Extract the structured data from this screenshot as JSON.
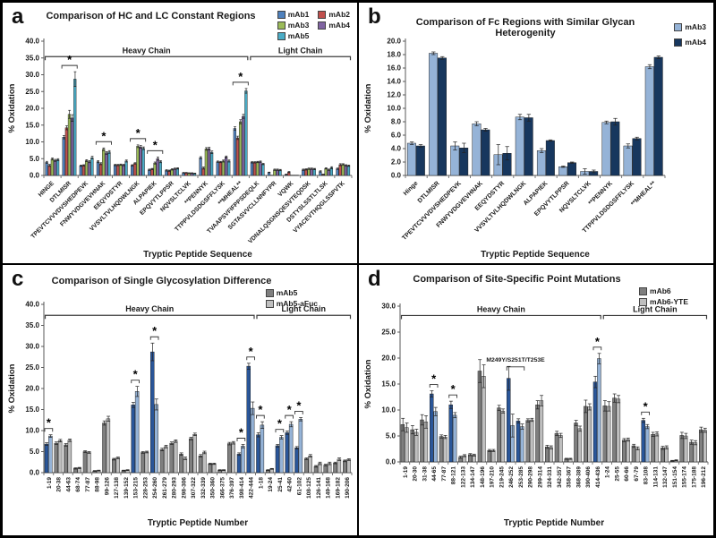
{
  "figure": {
    "background": "#ffffff",
    "border_color": "#000000"
  },
  "chart_data": [
    {
      "panel_label": "a",
      "type": "bar",
      "title": "Comparison of HC and LC Constant Regions",
      "xlabel": "Tryptic Peptide Sequence",
      "ylabel": "% Oxidation",
      "ylim": [
        0,
        40
      ],
      "ytick_step": 5,
      "grid": false,
      "legend_position": "top-right",
      "legend_columns": 2,
      "sig_marker_symbol": "*",
      "categories": [
        "HINGE",
        "DTLMISR",
        "TPEVTCVVVDVSHEDPEVK",
        "FNWYVDGVEVHNAK",
        "EEQYDSTYR",
        "VVSVLTVLHQDWLNGK",
        "ALPAPIEK",
        "EPQVYTLPPSR",
        "NQVSLTCLVK",
        "**PENNYK",
        "TTPPVLDSDGSFFLYSK",
        "**MHEAL**",
        "TVAAPSVFIFPPSDEQLK",
        "SGTASVVCLLNNFYPR",
        "VQWK",
        "VDNALQSGNSQESVTEQDSK",
        "DSTYSLSSTLTLSK",
        "VYACEVTHQGLSSPVTK"
      ],
      "series": [
        {
          "name": "mAb1",
          "color": "#4F81BD",
          "values": [
            3.9,
            11.4,
            2.9,
            4.1,
            3.1,
            3.0,
            1.7,
            1.5,
            0.8,
            5.3,
            4.1,
            14.0,
            3.9,
            0.9,
            0.3,
            1.7,
            1.2,
            2.0
          ],
          "errors": [
            0.3,
            0.5,
            0.2,
            0.3,
            0.2,
            0.2,
            0.2,
            0.2,
            0.1,
            0.3,
            0.2,
            0.5,
            0.2,
            0.1,
            0.1,
            0.2,
            0.2,
            0.2
          ]
        },
        {
          "name": "mAb2",
          "color": "#C0504D",
          "values": [
            3.0,
            14.2,
            3.0,
            3.5,
            3.1,
            3.6,
            1.9,
            1.4,
            0.8,
            2.2,
            4.0,
            11.2,
            3.9,
            0.1,
            1.0,
            1.8,
            0.3,
            3.2
          ],
          "errors": [
            0.3,
            0.6,
            0.2,
            0.3,
            0.2,
            0.2,
            0.2,
            0.2,
            0.1,
            0.3,
            0.2,
            0.5,
            0.2,
            0.1,
            0.2,
            0.2,
            0.1,
            0.3
          ]
        },
        {
          "name": "mAb3",
          "color": "#9BBB59",
          "values": [
            4.9,
            18.2,
            4.4,
            7.8,
            3.2,
            8.7,
            3.7,
            1.8,
            0.7,
            7.9,
            4.3,
            16.0,
            4.0,
            1.7,
            0.1,
            2.0,
            2.1,
            3.3
          ],
          "errors": [
            0.3,
            1.2,
            0.3,
            0.4,
            0.2,
            0.4,
            0.3,
            0.2,
            0.1,
            0.4,
            0.3,
            0.6,
            0.2,
            0.2,
            0.1,
            0.2,
            0.2,
            0.2
          ]
        },
        {
          "name": "mAb4",
          "color": "#8064A2",
          "values": [
            4.5,
            17.1,
            4.1,
            6.7,
            3.1,
            8.5,
            5.0,
            2.0,
            0.7,
            8.0,
            5.5,
            17.6,
            4.1,
            1.7,
            0.1,
            2.0,
            1.7,
            3.0
          ],
          "errors": [
            0.3,
            1.0,
            0.3,
            0.4,
            0.2,
            0.4,
            0.5,
            0.2,
            0.1,
            0.4,
            0.3,
            0.6,
            0.2,
            0.2,
            0.1,
            0.2,
            0.2,
            0.2
          ]
        },
        {
          "name": "mAb5",
          "color": "#4BACC6",
          "values": [
            4.7,
            28.7,
            5.3,
            7.0,
            4.3,
            8.1,
            4.1,
            2.1,
            0.6,
            6.9,
            4.3,
            25.2,
            3.4,
            1.6,
            0.1,
            1.9,
            2.3,
            2.9
          ],
          "errors": [
            0.3,
            2.2,
            0.4,
            0.4,
            0.3,
            0.4,
            0.3,
            0.2,
            0.1,
            0.4,
            0.3,
            0.7,
            0.2,
            0.2,
            0.1,
            0.2,
            0.3,
            0.2
          ]
        }
      ],
      "sig_markers": [
        1,
        3,
        5,
        6,
        11
      ],
      "group_brackets": [
        {
          "label": "Heavy Chain",
          "from": 0,
          "to": 11
        },
        {
          "label": "Light Chain",
          "from": 12,
          "to": 17
        }
      ]
    },
    {
      "panel_label": "b",
      "type": "bar",
      "title": "Comparison of Fc Regions with Similar Glycan Heterogenity",
      "xlabel": "Tryptic Peptide Sequence",
      "ylabel": "% Oxidation",
      "ylim": [
        0,
        20
      ],
      "ytick_step": 2,
      "grid": false,
      "legend_position": "top-right",
      "legend_columns": 1,
      "sig_marker_symbol": "*",
      "categories": [
        "Hinge",
        "DTLMISR",
        "TPEVTCVVVDVSHEDPEVK",
        "FNWYVDGVEVHNAK",
        "EEQYDSTYR",
        "VVSVLTVLHQDWLNGK",
        "ALPAPIEK",
        "EPQVYTLPPSR",
        "NQVSLTCLVK",
        "**PENNYK",
        "TTPPVLDSDGSFFLYSK",
        "**MHEAL**"
      ],
      "series": [
        {
          "name": "mAb3",
          "color": "#95B3D7",
          "values": [
            4.8,
            18.2,
            4.4,
            7.7,
            3.1,
            8.7,
            3.7,
            1.3,
            0.6,
            7.9,
            4.4,
            16.2
          ],
          "errors": [
            0.2,
            0.2,
            0.6,
            0.3,
            1.5,
            0.4,
            0.3,
            0.1,
            0.4,
            0.2,
            0.3,
            0.3
          ]
        },
        {
          "name": "mAb4",
          "color": "#17375E",
          "values": [
            4.4,
            17.5,
            4.1,
            6.8,
            3.3,
            8.6,
            5.2,
            1.9,
            0.6,
            8.0,
            5.5,
            17.6
          ],
          "errors": [
            0.2,
            0.2,
            0.7,
            0.2,
            1.0,
            0.5,
            0.1,
            0.1,
            0.2,
            0.5,
            0.2,
            0.2
          ]
        }
      ],
      "sig_markers": [],
      "group_brackets": []
    },
    {
      "panel_label": "c",
      "type": "bar",
      "title": "Comparison of Single Glycosylation Difference",
      "xlabel": "Tryptic Peptide Number",
      "ylabel": "% Oxidation",
      "ylim": [
        0,
        40
      ],
      "ytick_step": 5,
      "grid": false,
      "legend_position": "top-right",
      "legend_columns": 1,
      "sig_marker_symbol": "*",
      "categories": [
        "1-19",
        "20-38",
        "44-63",
        "68-74",
        "77-87",
        "88-98",
        "99-126",
        "127-138",
        "139-152",
        "153-215",
        "228-253",
        "254-260",
        "261-279",
        "280-293",
        "298-306",
        "307-322",
        "332-339",
        "350-360",
        "366-375",
        "376-397",
        "398-414",
        "422-444",
        "1-18",
        "19-24",
        "25-41",
        "42-60",
        "61-102",
        "108-125",
        "126-141",
        "149-168",
        "169-182",
        "190-206"
      ],
      "colors": {
        "normal": [
          "#7F7F7F",
          "#BFBFBF"
        ],
        "highlight": [
          "#2A5699",
          "#95B3D7"
        ]
      },
      "highlight": [
        0,
        9,
        11,
        20,
        21,
        22,
        24,
        25,
        26
      ],
      "series": [
        {
          "name": "mAb5",
          "color": "#7F7F7F",
          "values": [
            6.8,
            7.0,
            6.6,
            1.0,
            5.0,
            0.4,
            11.8,
            3.2,
            0.5,
            16.1,
            4.8,
            28.7,
            5.5,
            7.0,
            4.4,
            8.1,
            4.0,
            2.1,
            0.6,
            6.9,
            4.4,
            25.3,
            9.0,
            0.6,
            6.4,
            9.5,
            5.9,
            3.3,
            1.5,
            1.8,
            2.3,
            2.8
          ],
          "errors": [
            0.3,
            0.3,
            0.3,
            0.15,
            0.2,
            0.1,
            0.5,
            0.2,
            0.1,
            0.6,
            0.2,
            2.1,
            0.3,
            0.3,
            0.3,
            0.3,
            0.3,
            0.15,
            0.1,
            0.3,
            0.3,
            0.7,
            0.5,
            0.1,
            0.3,
            0.4,
            0.3,
            0.2,
            0.2,
            0.2,
            0.2,
            0.2
          ]
        },
        {
          "name": "mAb5-aFuc",
          "color": "#BFBFBF",
          "values": [
            8.7,
            7.6,
            7.7,
            1.1,
            4.8,
            0.5,
            12.8,
            3.5,
            0.6,
            19.3,
            4.9,
            16.2,
            6.2,
            7.5,
            3.4,
            9.1,
            4.8,
            2.1,
            0.6,
            7.1,
            6.3,
            15.3,
            11.3,
            0.9,
            8.4,
            11.5,
            12.7,
            4.0,
            2.2,
            2.2,
            3.2,
            3.1
          ],
          "errors": [
            0.3,
            0.3,
            0.3,
            0.15,
            0.2,
            0.1,
            0.6,
            0.2,
            0.1,
            1.2,
            0.2,
            1.3,
            0.3,
            0.3,
            0.3,
            0.3,
            0.3,
            0.15,
            0.1,
            0.3,
            0.4,
            1.5,
            0.8,
            0.1,
            0.4,
            0.6,
            0.4,
            0.3,
            0.3,
            0.3,
            0.3,
            0.2
          ]
        }
      ],
      "sig_markers": [
        0,
        9,
        11,
        20,
        21,
        22,
        24,
        25,
        26
      ],
      "group_brackets": [
        {
          "label": "Heavy Chain",
          "from": 0,
          "to": 21
        },
        {
          "label": "Light Chain",
          "from": 22,
          "to": 31
        }
      ]
    },
    {
      "panel_label": "d",
      "type": "bar",
      "title": "Comparison of Site-Specific Point Mutations",
      "xlabel": "Tryptic Peptide Number",
      "ylabel": "% Oxidation",
      "ylim": [
        0,
        30
      ],
      "ytick_step": 5,
      "grid": false,
      "legend_position": "top-right",
      "legend_columns": 1,
      "sig_marker_symbol": "*",
      "categories": [
        "1-19",
        "20-30",
        "31-38",
        "44-65",
        "77-87",
        "88-121",
        "122-133",
        "134-147",
        "148-196",
        "197-210",
        "219-245",
        "246-252",
        "253-285",
        "290-298",
        "299-314",
        "324-331",
        "342-357",
        "358-367",
        "368-389",
        "390-406",
        "414-436",
        "1-24",
        "25-55",
        "60-66",
        "67-79",
        "83-108",
        "114-131",
        "132-147",
        "151-154",
        "155-174",
        "175-188",
        "196-212"
      ],
      "colors": {
        "normal": [
          "#7F7F7F",
          "#BFBFBF"
        ],
        "highlight": [
          "#2A5699",
          "#95B3D7"
        ]
      },
      "highlight": [
        3,
        5,
        11,
        12,
        20,
        25
      ],
      "series": [
        {
          "name": "mAb6",
          "color": "#7F7F7F",
          "values": [
            7.2,
            6.2,
            8.1,
            13.1,
            4.9,
            11.0,
            0.9,
            1.4,
            17.5,
            2.2,
            10.4,
            16.1,
            7.9,
            8.0,
            11.0,
            2.9,
            5.5,
            0.6,
            7.5,
            10.7,
            15.4,
            10.8,
            12.3,
            4.2,
            3.1,
            8.0,
            5.3,
            2.7,
            0.2,
            5.1,
            3.8,
            6.2
          ],
          "errors": [
            1.2,
            0.8,
            1.0,
            0.6,
            0.3,
            0.7,
            0.2,
            0.2,
            2.2,
            0.2,
            0.5,
            2.3,
            0.4,
            0.3,
            0.8,
            0.3,
            0.4,
            0.1,
            0.5,
            1.2,
            1.1,
            1.0,
            0.8,
            0.3,
            0.3,
            0.4,
            0.4,
            0.3,
            0.1,
            0.6,
            0.4,
            0.5
          ]
        },
        {
          "name": "mAb6-YTE",
          "color": "#BFBFBF",
          "values": [
            6.6,
            5.7,
            7.7,
            9.7,
            4.8,
            9.0,
            1.2,
            1.3,
            16.5,
            2.2,
            9.8,
            7.0,
            6.8,
            8.1,
            11.8,
            2.8,
            5.1,
            0.6,
            6.4,
            10.6,
            19.9,
            10.7,
            12.1,
            4.3,
            2.6,
            6.8,
            5.4,
            2.8,
            0.3,
            5.0,
            3.7,
            6.1
          ],
          "errors": [
            0.9,
            0.6,
            1.2,
            0.8,
            0.3,
            0.5,
            0.2,
            0.2,
            2.2,
            0.2,
            0.4,
            2.2,
            0.5,
            0.3,
            1.0,
            0.3,
            0.4,
            0.1,
            0.5,
            0.6,
            1.0,
            0.9,
            0.7,
            0.3,
            0.3,
            0.4,
            0.4,
            0.3,
            0.1,
            0.5,
            0.4,
            0.4
          ]
        }
      ],
      "sig_markers": [
        3,
        5,
        20,
        25
      ],
      "annotation": {
        "label": "M249Y/S251T/T253E",
        "from": 11,
        "to": 12,
        "y_value": 18.3
      },
      "group_brackets": [
        {
          "label": "Heavy Chain",
          "from": 0,
          "to": 20
        },
        {
          "label": "Light Chain",
          "from": 21,
          "to": 31
        }
      ]
    }
  ]
}
